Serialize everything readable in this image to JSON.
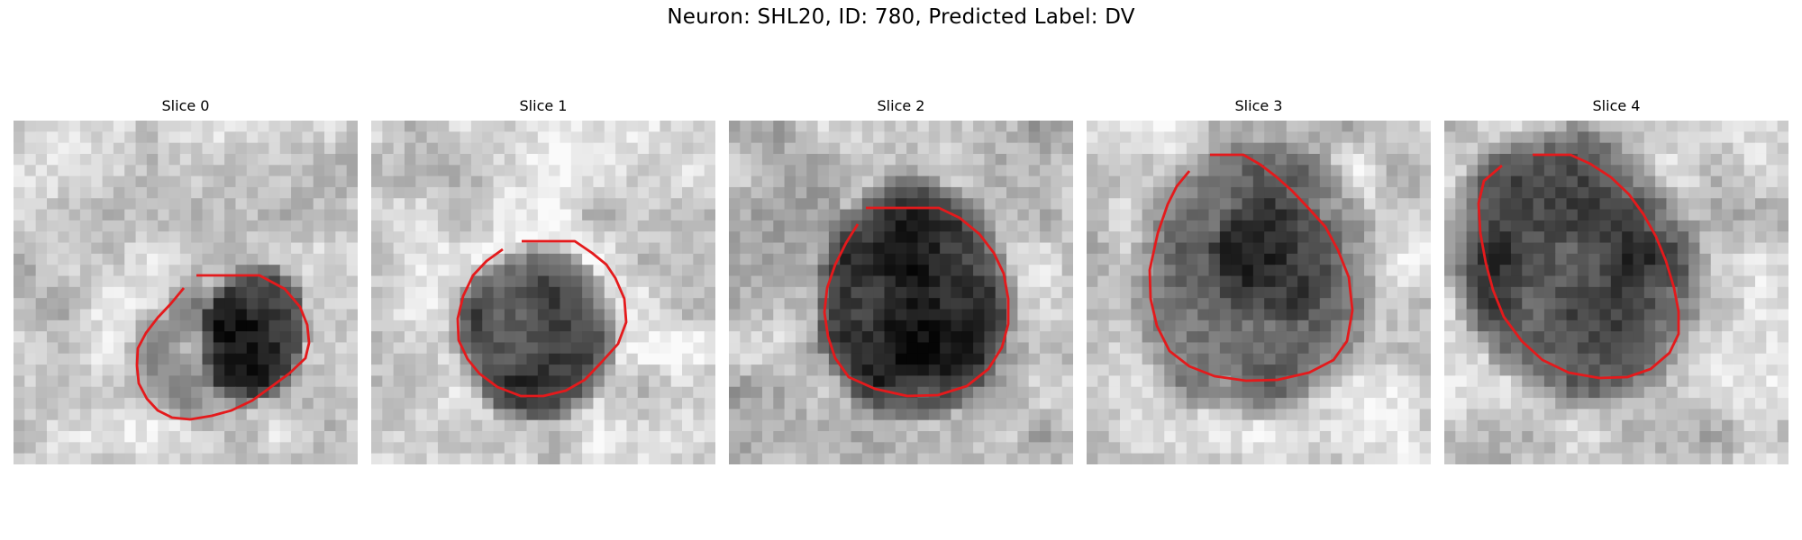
{
  "figure": {
    "title": "Neuron: SHL20, ID: 780, Predicted Label: DV"
  },
  "panels": [
    {
      "title": "Slice 0"
    },
    {
      "title": "Slice 1"
    },
    {
      "title": "Slice 2"
    },
    {
      "title": "Slice 3"
    },
    {
      "title": "Slice 4"
    }
  ],
  "colors": {
    "contour": "#e41a1c",
    "background": "#ffffff",
    "image_colormap": "grayscale"
  }
}
